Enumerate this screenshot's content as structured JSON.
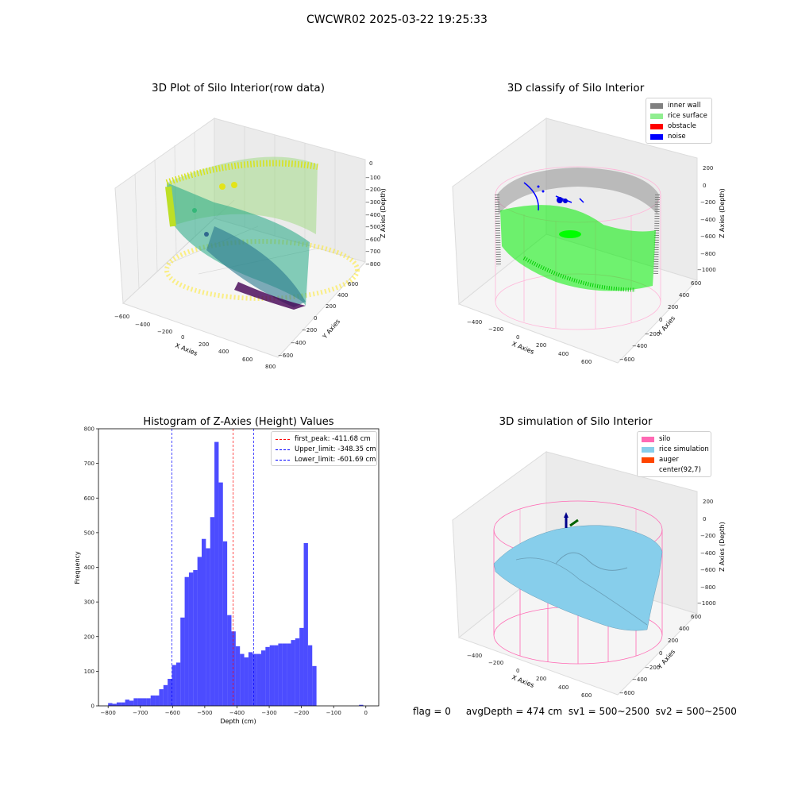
{
  "figure": {
    "suptitle": "CWCWR02 2025-03-22 19:25:33",
    "status_line": "flag = 0     avgDepth = 474 cm  sv1 = 500~2500  sv2 = 500~2500"
  },
  "raw_plot": {
    "title": "3D Plot of Silo Interior(row data)",
    "xlabel": "X Axies",
    "ylabel": "Y Axies",
    "zlabel": "Z Axies (Depth)",
    "x_ticks": [
      "−600",
      "−400",
      "−200",
      "0",
      "200",
      "400",
      "600",
      "800"
    ],
    "y_ticks": [
      "−600",
      "−400",
      "−200",
      "0",
      "200",
      "400",
      "600"
    ],
    "z_ticks": [
      "0",
      "−100",
      "−200",
      "−300",
      "−400",
      "−500",
      "−600",
      "−700",
      "−800"
    ],
    "colormap": "viridis"
  },
  "classify_plot": {
    "title": "3D classify of Silo Interior",
    "xlabel": "X Axies",
    "ylabel": "Y Axies",
    "zlabel": "Z Axies (Depth)",
    "x_ticks": [
      "−400",
      "−200",
      "0",
      "200",
      "400",
      "600"
    ],
    "y_ticks": [
      "−600",
      "−400",
      "−200",
      "0",
      "200",
      "400",
      "600"
    ],
    "z_ticks": [
      "200",
      "0",
      "−200",
      "−400",
      "−600",
      "−800",
      "−1000"
    ],
    "legend": [
      {
        "label": "inner wall",
        "color": "#808080"
      },
      {
        "label": "rice surface",
        "color": "#90ee90"
      },
      {
        "label": "obstacle",
        "color": "#ff0000"
      },
      {
        "label": "noise",
        "color": "#0000ff"
      }
    ]
  },
  "simulation_plot": {
    "title": "3D simulation of Silo Interior",
    "xlabel": "X Axies",
    "ylabel": "Y Axies",
    "zlabel": "Z Axies (Depth)",
    "x_ticks": [
      "−400",
      "−200",
      "0",
      "200",
      "400",
      "600"
    ],
    "y_ticks": [
      "−600",
      "−400",
      "−200",
      "0",
      "200",
      "400",
      "600"
    ],
    "z_ticks": [
      "200",
      "0",
      "−200",
      "−400",
      "−600",
      "−800",
      "−1000"
    ],
    "legend": [
      {
        "label": "silo",
        "color": "#ff69b4"
      },
      {
        "label": "rice simulation",
        "color": "#87ceeb"
      },
      {
        "label": "auger",
        "color": "#ff4500"
      },
      {
        "label": "center(92,7)",
        "color": ""
      }
    ]
  },
  "chart_data": {
    "type": "bar",
    "title": "Histogram of Z-Axies (Height) Values",
    "xlabel": "Depth (cm)",
    "ylabel": "Frequency",
    "xlim": [
      -830,
      40
    ],
    "ylim": [
      0,
      800
    ],
    "x_ticks": [
      -800,
      -700,
      -600,
      -500,
      -400,
      -300,
      -200,
      -100,
      0
    ],
    "x_tick_labels": [
      "−800",
      "−700",
      "−600",
      "−500",
      "−400",
      "−300",
      "−200",
      "−100",
      "0"
    ],
    "y_ticks": [
      0,
      100,
      200,
      300,
      400,
      500,
      600,
      700,
      800
    ],
    "y_tick_labels": [
      "0",
      "100",
      "200",
      "300",
      "400",
      "500",
      "600",
      "700",
      "800"
    ],
    "bar_color": "#0000ff",
    "bar_opacity": 0.7,
    "bin_width": 13.2,
    "bin_starts": [
      -800.0,
      -786.8,
      -773.6,
      -760.4,
      -747.2,
      -734.0,
      -720.8,
      -707.6,
      -694.4,
      -681.2,
      -668.0,
      -654.8,
      -641.6,
      -628.4,
      -615.2,
      -602.0,
      -588.8,
      -575.6,
      -562.4,
      -549.2,
      -536.0,
      -522.8,
      -509.6,
      -496.4,
      -483.2,
      -470.0,
      -456.8,
      -443.6,
      -430.4,
      -417.2,
      -404.0,
      -390.8,
      -377.6,
      -364.4,
      -351.2,
      -338.0,
      -324.8,
      -311.6,
      -298.4,
      -285.2,
      -272.0,
      -258.8,
      -245.6,
      -232.4,
      -219.2,
      -206.0,
      -192.8,
      -179.6,
      -166.4,
      -153.2,
      -140.0,
      -126.8,
      -113.6,
      -100.4,
      -87.2,
      -74.0,
      -60.8,
      -47.6,
      -34.4,
      -21.2,
      -8.0
    ],
    "values": [
      8,
      6,
      10,
      10,
      18,
      15,
      22,
      22,
      22,
      22,
      30,
      30,
      48,
      60,
      78,
      118,
      125,
      255,
      372,
      385,
      392,
      430,
      482,
      455,
      545,
      762,
      645,
      475,
      262,
      215,
      172,
      150,
      140,
      155,
      150,
      150,
      160,
      170,
      175,
      175,
      180,
      180,
      180,
      190,
      195,
      225,
      470,
      175,
      115,
      0,
      0,
      0,
      0,
      0,
      0,
      0,
      0,
      0,
      0,
      3,
      0
    ],
    "vlines": [
      {
        "label": "first_peak: -411.68 cm",
        "x": -411.68,
        "color": "#ff0000"
      },
      {
        "label": "Upper_limit: -348.35 cm",
        "x": -348.35,
        "color": "#0000ff"
      },
      {
        "label": "Lower_limit: -601.69 cm",
        "x": -601.69,
        "color": "#0000ff"
      }
    ]
  }
}
